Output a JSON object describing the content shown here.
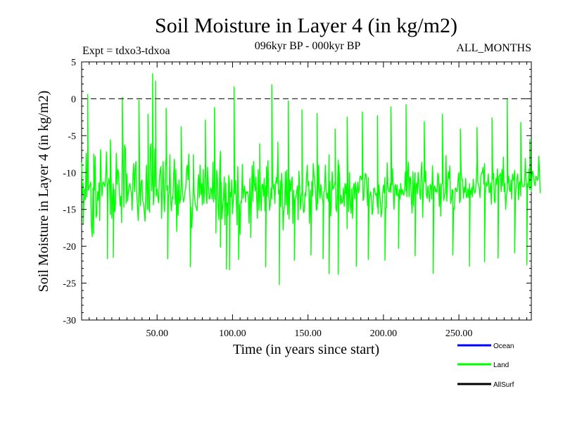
{
  "chart_data": {
    "type": "line",
    "title": "Soil Moisture in Layer 4 (in kg/m2)",
    "subtitle_left": "Expt = tdxo3-tdxoa",
    "subtitle_center": "096kyr BP - 000kyr BP",
    "subtitle_right": "ALL_MONTHS",
    "xlabel": "Time (in years since start)",
    "ylabel": "Soil Moisture in Layer 4 (in kg/m2)",
    "xlim": [
      0,
      298
    ],
    "ylim": [
      -30,
      5
    ],
    "x_ticks": [
      50,
      100,
      150,
      200,
      250
    ],
    "x_tick_labels": [
      "50.00",
      "100.00",
      "150.00",
      "200.00",
      "250.00"
    ],
    "y_ticks": [
      5,
      0,
      -5,
      -10,
      -15,
      -20,
      -25,
      -30
    ],
    "y_tick_labels": [
      "5",
      "0",
      "-5",
      "-10",
      "-15",
      "-20",
      "-25",
      "-30"
    ],
    "reference_line": {
      "y": 0,
      "style": "dashed"
    },
    "grid": false,
    "legend_position": "bottom-right",
    "series": [
      {
        "name": "Ocean",
        "color": "#0000ff",
        "values": []
      },
      {
        "name": "Land",
        "color": "#00ff00",
        "x_start": 0,
        "x_step": 0.5,
        "values": [
          -8.6,
          -12.9,
          -11.5,
          -14.4,
          -12.2,
          -13.7,
          -7.4,
          -13.3,
          -7.3,
          -12.4,
          -12.0,
          -11.7,
          -11.3,
          -17.2,
          -18.7,
          -12.1,
          -18.3,
          -12.4,
          -7.8,
          -16.1,
          -15.7,
          -12.6,
          -13.8,
          -11.4,
          -14.6,
          -6.9,
          -10.8,
          -13.2,
          -11.4,
          -11.3,
          -11.7,
          -11.9,
          -10.3,
          -7.2,
          -14.3,
          -11.6,
          -10.8,
          -11.5,
          -15.7,
          -10.4,
          -16.2,
          -13.0,
          -11.5,
          -12.3,
          -15.3,
          -14.1,
          -7.4,
          -11.6,
          -9.6,
          -10.1,
          -12.6,
          -14.5,
          -13.2,
          -16.8,
          -6.7,
          -8.3,
          -14.7,
          -6.3,
          -6.8,
          -14.2,
          -10.2,
          -13.9,
          -12.6,
          -11.8,
          -11.5,
          -12.3,
          -12.9,
          -15.1,
          -10.4,
          -8.8,
          -12.6,
          -9.7,
          -8.5,
          -12.9,
          -14.5,
          -16.5,
          -12.9,
          -11.1,
          -14.5,
          -11.3,
          -11.0,
          -13.8,
          -14.2,
          -15.3,
          -16.6,
          -12.7,
          -9.0,
          -15.0,
          -10.5,
          -14.8,
          -15.4,
          -6.7,
          -6.1,
          -12.5,
          -10.3,
          -14.4,
          -13.1,
          -6.8,
          -11.9,
          -13.2,
          -12.2,
          -13.3,
          -14.1,
          -10.7,
          -9.8,
          -9.2,
          -16.2,
          -12.2,
          -8.5,
          -13.7,
          -15.3,
          -9.4,
          -8.0,
          -12.4,
          -11.8,
          -13.4,
          -12.7,
          -7.6,
          -14.0,
          -15.2,
          -13.3,
          -13.5,
          -10.1,
          -8.2,
          -14.3,
          -9.6,
          -18.0,
          -11.6,
          -15.8,
          -11.0,
          -14.2,
          -13.7,
          -11.6,
          -11.2,
          -13.0,
          -14.0,
          -13.6,
          -12.5,
          -12.1,
          -9.7,
          -9.0,
          -11.0,
          -7.5,
          -11.7,
          -14.3,
          -14.7,
          -17.5,
          -15.3,
          -11.5,
          -12.6,
          -13.7,
          -14.6,
          -14.7,
          -15.2,
          -12.0,
          -10.3,
          -13.4,
          -9.0,
          -13.0,
          -11.5,
          -14.4,
          -9.6,
          -14.2,
          -12.0,
          -8.7,
          -12.9,
          -14.2,
          -9.3,
          -11.7,
          -13.6,
          -13.5,
          -12.1,
          -12.3,
          -13.6,
          -8.6,
          -14.0,
          -11.0,
          -13.6,
          -13.6,
          -9.7,
          -10.9,
          -14.9,
          -16.4,
          -9.5,
          -7.1,
          -11.3,
          -16.3,
          -14.5,
          -13.4,
          -10.6,
          -17.1,
          -11.4,
          -15.3,
          -14.1,
          -15.8,
          -10.4,
          -11.4,
          -12.7,
          -13.3,
          -11.0,
          -15.6,
          -13.8,
          -11.5,
          -12.9,
          -11.1,
          -13.9,
          -17.1,
          -9.2,
          -14.4,
          -14.3,
          -18.4,
          -13.9,
          -14.1,
          -8.9,
          -13.5,
          -12.5,
          -11.8,
          -14.0,
          -12.6,
          -12.8,
          -12.6,
          -13.6,
          -16.9,
          -10.8,
          -16.2,
          -14.0,
          -9.1,
          -13.9,
          -8.5,
          -11.5,
          -12.5,
          -10.6,
          -13.4,
          -16.2,
          -9.6,
          -15.1,
          -12.1,
          -13.3,
          -15.2,
          -11.6,
          -11.6,
          -13.2,
          -10.8,
          -15.2,
          -11.8,
          -9.2,
          -13.2,
          -8.4,
          -13.0,
          -15.1,
          -14.4,
          -12.1,
          -13.6,
          -11.0,
          -12.2,
          -11.6,
          -14.2,
          -11.8,
          -10.7,
          -11.5,
          -7.5,
          -12.9,
          -12.4,
          -11.1,
          -14.6,
          -10.1,
          -12.1,
          -17.8,
          -15.3,
          -14.4,
          -9.9,
          -14.4,
          -9.7,
          -15.7,
          -12.1,
          -16.3,
          -11.0,
          -12.5,
          -11.3,
          -10.6,
          -16.9,
          -12.4,
          -14.6,
          -13.6,
          -13.3,
          -12.6,
          -11.8,
          -16.4,
          -9.8,
          -12.2,
          -15.0,
          -13.3,
          -12.7,
          -13.8,
          -15.4,
          -15.3,
          -12.8,
          -13.2,
          -10.7,
          -9.0,
          -11.8,
          -11.2,
          -16.9,
          -12.4,
          -16.9,
          -11.2,
          -13.2,
          -8.8,
          -10.3,
          -11.0,
          -12.8,
          -15.1,
          -15.0,
          -14.2,
          -9.0,
          -12.4,
          -13.5,
          -11.6,
          -12.4,
          -13.4,
          -14.2,
          -12.6,
          -12.5,
          -9.0,
          -12.1,
          -13.5,
          -12.8,
          -13.9,
          -7.6,
          -11.2,
          -15.9,
          -14.1,
          -9.9,
          -12.3,
          -12.1,
          -11.7,
          -11.2,
          -14.7,
          -15.3,
          -12.5,
          -8.3,
          -9.0,
          -11.2,
          -14.3,
          -13.1,
          -14.2,
          -13.9,
          -12.1,
          -14.6,
          -11.5,
          -12.9,
          -11.6,
          -17.6,
          -11.8,
          -15.3,
          -10.0,
          -14.4,
          -15.5,
          -12.2,
          -16.2,
          -12.0,
          -11.5,
          -13.6,
          -11.3,
          -12.8,
          -12.7,
          -11.3,
          -12.8,
          -12.2,
          -10.5,
          -10.5,
          -11.0,
          -10.5,
          -13.8,
          -13.5,
          -11.2,
          -10.1,
          -10.3,
          -12.3,
          -14.5,
          -10.7,
          -14.1,
          -13.2,
          -12.6,
          -13.3,
          -15.7,
          -15.0,
          -12.2,
          -12.1,
          -12.8,
          -13.1,
          -12.8,
          -14.7,
          -15.6,
          -11.7,
          -12.9,
          -14.1,
          -16.0,
          -15.2,
          -12.7,
          -11.7,
          -12.8,
          -10.7,
          -14.8,
          -14.8,
          -8.7,
          -12.0,
          -12.6,
          -12.6,
          -11.5,
          -12.7,
          -11.7,
          -9.5,
          -12.5,
          -15.0,
          -11.9,
          -11.6,
          -13.1,
          -11.7,
          -13.2,
          -12.9,
          -12.3,
          -13.6,
          -11.5,
          -13.0,
          -12.3,
          -12.8,
          -13.1,
          -12.3,
          -9.9,
          -12.5,
          -13.3,
          -10.2,
          -8.6,
          -13.3,
          -10.6,
          -10.8,
          -13.8,
          -15.5,
          -9.9,
          -14.5,
          -11.4,
          -10.0,
          -12.2,
          -11.4,
          -12.9,
          -10.0,
          -11.4,
          -12.7,
          -13.6,
          -9.5,
          -8.6,
          -16.1,
          -11.7,
          -9.9,
          -11.3,
          -9.8,
          -13.1,
          -13.5,
          -11.8,
          -12.9,
          -14.0,
          -11.6,
          -11.8,
          -13.6,
          -9.1,
          -12.2,
          -12.2,
          -11.8,
          -12.6,
          -12.3,
          -12.7,
          -10.1,
          -10.5,
          -14.6,
          -11.5,
          -15.9,
          -11.7,
          -11.4,
          -10.6,
          -13.8,
          -13.0,
          -12.8,
          -7.7,
          -13.9,
          -11.3,
          -9.9,
          -10.8,
          -9.1,
          -14.2,
          -13.7,
          -12.3,
          -12.5,
          -14.8,
          -15.0,
          -12.2,
          -12.1,
          -12.6,
          -12.4,
          -10.8,
          -10.0,
          -14.1,
          -13.8,
          -10.0,
          -11.0,
          -11.0,
          -13.5,
          -12.0,
          -12.7,
          -10.8,
          -13.4,
          -13.3,
          -12.2,
          -13.4,
          -11.5,
          -12.4,
          -13.0,
          -12.0,
          -13.3,
          -10.9,
          -12.2,
          -12.8,
          -12.5,
          -11.0,
          -8.6,
          -11.3,
          -11.6,
          -12.2,
          -13.4,
          -10.7,
          -10.0,
          -10.0,
          -9.3,
          -11.6,
          -8.8,
          -12.9,
          -11.3,
          -11.8,
          -11.7,
          -10.2,
          -12.7,
          -12.7,
          -11.4,
          -14.3,
          -10.4,
          -10.9,
          -10.1,
          -13.8,
          -14.1,
          -10.8,
          -11.6,
          -9.5,
          -12.0,
          -10.6,
          -10.4,
          -10.1,
          -12.6,
          -9.6,
          -11.8,
          -7.9,
          -12.6,
          -11.5,
          -15.0,
          -13.1,
          -12.4,
          -11.4,
          -10.5,
          -12.4,
          -12.6,
          -11.0,
          -13.6,
          -10.2,
          -11.1,
          -10.7,
          -9.7,
          -13.1,
          -12.0,
          -10.7,
          -10.2,
          -13.7,
          -11.4,
          -11.2,
          -13.2,
          -10.6,
          -11.9,
          -11.9,
          -11.9,
          -11.7,
          -8.1,
          -10.7,
          -12.7,
          -11.5,
          -12.0,
          -9.5,
          -12.3,
          -10.1,
          -12.6,
          -10.2,
          -9.8,
          -10.6,
          -11.5,
          -11.8,
          -10.5,
          -10.6,
          -11.1,
          -10.8,
          -7.8,
          -10.6,
          -12.8
        ]
      },
      {
        "name": "AllSurf",
        "color": "#000000",
        "values": []
      }
    ],
    "peaks": [
      {
        "x": 1,
        "y": -17.0
      },
      {
        "x": 4,
        "y": 0.6
      },
      {
        "x": 8,
        "y": -7.5
      },
      {
        "x": 12,
        "y": -16.5
      },
      {
        "x": 17,
        "y": -21.7
      },
      {
        "x": 19,
        "y": -5.6
      },
      {
        "x": 21,
        "y": -21.5
      },
      {
        "x": 27,
        "y": 0.2
      },
      {
        "x": 38,
        "y": -0.2
      },
      {
        "x": 44,
        "y": -2.1
      },
      {
        "x": 47,
        "y": 3.4
      },
      {
        "x": 49,
        "y": 2.4
      },
      {
        "x": 56,
        "y": -1.3
      },
      {
        "x": 57,
        "y": -21.7
      },
      {
        "x": 66,
        "y": -3.8
      },
      {
        "x": 72,
        "y": -22.8
      },
      {
        "x": 74,
        "y": -7.6
      },
      {
        "x": 82,
        "y": -2.9
      },
      {
        "x": 88,
        "y": -1.2
      },
      {
        "x": 89,
        "y": -18.2
      },
      {
        "x": 92,
        "y": -20.1
      },
      {
        "x": 96,
        "y": -23.1
      },
      {
        "x": 98,
        "y": -23.2
      },
      {
        "x": 101,
        "y": 1.6
      },
      {
        "x": 104,
        "y": -21.8
      },
      {
        "x": 112,
        "y": -18.8
      },
      {
        "x": 118,
        "y": -6.1
      },
      {
        "x": 122,
        "y": -22.8
      },
      {
        "x": 126,
        "y": 1.9
      },
      {
        "x": 130,
        "y": -5.9
      },
      {
        "x": 131,
        "y": -25.2
      },
      {
        "x": 137,
        "y": -0.3
      },
      {
        "x": 141,
        "y": -21.9
      },
      {
        "x": 146,
        "y": -1.5
      },
      {
        "x": 152,
        "y": -21.2
      },
      {
        "x": 156,
        "y": -2.0
      },
      {
        "x": 160,
        "y": -21.7
      },
      {
        "x": 164,
        "y": -23.7
      },
      {
        "x": 168,
        "y": -4.1
      },
      {
        "x": 170,
        "y": -23.8
      },
      {
        "x": 176,
        "y": -2.5
      },
      {
        "x": 182,
        "y": -22.7
      },
      {
        "x": 186,
        "y": -1.8
      },
      {
        "x": 190,
        "y": -21.8
      },
      {
        "x": 196,
        "y": -2.3
      },
      {
        "x": 201,
        "y": -21.9
      },
      {
        "x": 205,
        "y": -1.1
      },
      {
        "x": 210,
        "y": -20.3
      },
      {
        "x": 215,
        "y": -0.8
      },
      {
        "x": 221,
        "y": -21.3
      },
      {
        "x": 227,
        "y": -3.1
      },
      {
        "x": 233,
        "y": -23.7
      },
      {
        "x": 239,
        "y": -2.1
      },
      {
        "x": 246,
        "y": -21.2
      },
      {
        "x": 251,
        "y": -4.1
      },
      {
        "x": 257,
        "y": -22.7
      },
      {
        "x": 262,
        "y": -3.9
      },
      {
        "x": 267,
        "y": -22.1
      },
      {
        "x": 272,
        "y": -2.6
      },
      {
        "x": 276,
        "y": -21.6
      },
      {
        "x": 282,
        "y": 0.0
      },
      {
        "x": 287,
        "y": -20.9
      },
      {
        "x": 291,
        "y": -3.2
      },
      {
        "x": 295,
        "y": -22.5
      },
      {
        "x": 297,
        "y": -5.5
      }
    ]
  }
}
